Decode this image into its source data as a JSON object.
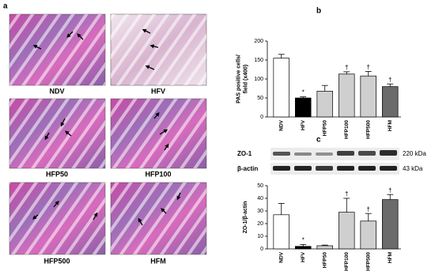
{
  "panel_labels": [
    "a",
    "b",
    "c"
  ],
  "histology": {
    "labels": [
      "NDV",
      "HFV",
      "HFP50",
      "HFP100",
      "HFP500",
      "HFM"
    ]
  },
  "blot": {
    "rows": [
      {
        "name": "ZO-1",
        "size": "220 kDa"
      },
      {
        "name": "β-actin",
        "size": "43 kDa"
      }
    ]
  },
  "chart_data": [
    {
      "type": "bar",
      "ylabel": [
        "PAS positive cells/",
        "field (x400)"
      ],
      "categories": [
        "NDV",
        "HFV",
        "HFP50",
        "HFP100",
        "HFP500",
        "HFM"
      ],
      "values": [
        155,
        50,
        68,
        113,
        108,
        80
      ],
      "errors": [
        10,
        3,
        15,
        6,
        12,
        7
      ],
      "colors": [
        "#ffffff",
        "#000000",
        "#cfcfcf",
        "#cfcfcf",
        "#cfcfcf",
        "#6b6b6b"
      ],
      "markers": [
        {
          "category": "HFV",
          "text": "*"
        },
        {
          "category": "HFP100",
          "text": "†"
        },
        {
          "category": "HFP500",
          "text": "†"
        },
        {
          "category": "HFM",
          "text": "†"
        }
      ],
      "ylim": [
        0,
        200
      ],
      "yticks": [
        0,
        50,
        100,
        150,
        200
      ]
    },
    {
      "type": "bar",
      "ylabel": [
        "ZO-1/β-actin"
      ],
      "categories": [
        "NDV",
        "HFV",
        "HFP50",
        "HFP100",
        "HFP500",
        "HFM"
      ],
      "values": [
        27,
        2,
        2.5,
        29,
        22,
        39
      ],
      "errors": [
        9,
        1.5,
        0.5,
        11,
        6,
        4
      ],
      "colors": [
        "#ffffff",
        "#000000",
        "#cfcfcf",
        "#cfcfcf",
        "#cfcfcf",
        "#6b6b6b"
      ],
      "markers": [
        {
          "category": "HFV",
          "text": "*"
        },
        {
          "category": "HFP100",
          "text": "†"
        },
        {
          "category": "HFP500",
          "text": "†"
        },
        {
          "category": "HFM",
          "text": "†"
        }
      ],
      "ylim": [
        0,
        50
      ],
      "yticks": [
        0,
        10,
        20,
        30,
        40,
        50
      ]
    }
  ]
}
